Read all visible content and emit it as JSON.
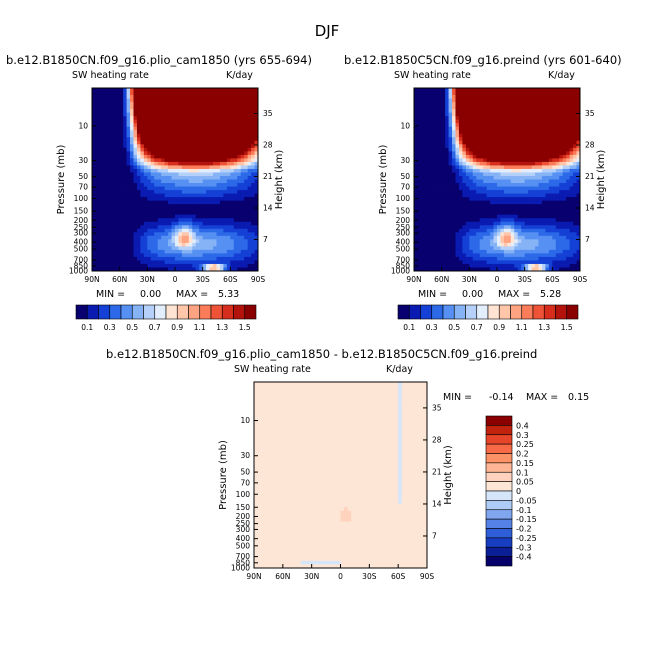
{
  "page_title": "DJF",
  "colors": {
    "frame": "#000000",
    "background": "#ffffff"
  },
  "chart_data": [
    {
      "type": "heatmap",
      "title": "b.e12.B1850CN.f09_g16.plio_cam1850 (yrs 655-694)",
      "subtitle_left": "SW heating rate",
      "subtitle_right": "K/day",
      "ylabel": "Pressure (mb)",
      "ylabel_right": "Height (km)",
      "x_ticks": [
        "90N",
        "60N",
        "30N",
        "0",
        "30S",
        "60S",
        "90S"
      ],
      "y_ticks": [
        "10",
        "30",
        "50",
        "70",
        "100",
        "150",
        "200",
        "250",
        "300",
        "400",
        "500",
        "700",
        "850",
        "1000"
      ],
      "y_ticks_right": [
        "35",
        "28",
        "21",
        "14",
        "7"
      ],
      "ylim": [
        1000,
        3
      ],
      "stats": {
        "min_label": "MIN =",
        "min_value": "0.00",
        "max_label": "MAX =",
        "max_value": "5.33"
      },
      "colorbar": {
        "labels": [
          "0.1",
          "0.3",
          "0.5",
          "0.7",
          "0.9",
          "1.1",
          "1.3",
          "1.5"
        ],
        "colors": [
          "#08006e",
          "#0a1bb1",
          "#1440d6",
          "#2c69e8",
          "#5690f2",
          "#86b2f6",
          "#b6d1f9",
          "#e3eefd",
          "#ffe3d3",
          "#ffc6aa",
          "#fda382",
          "#fb7c59",
          "#ee5337",
          "#d72d1c",
          "#b3130c",
          "#8a0000"
        ]
      },
      "mean_fields": {
        "min": 0.0,
        "max": 5.33
      }
    },
    {
      "type": "heatmap",
      "title": "b.e12.B1850C5CN.f09_g16.preind (yrs 601-640)",
      "subtitle_left": "SW heating rate",
      "subtitle_right": "K/day",
      "ylabel": "Pressure (mb)",
      "ylabel_right": "Height (km)",
      "x_ticks": [
        "90N",
        "60N",
        "30N",
        "0",
        "30S",
        "60S",
        "90S"
      ],
      "y_ticks": [
        "10",
        "30",
        "50",
        "70",
        "100",
        "150",
        "200",
        "250",
        "300",
        "400",
        "500",
        "700",
        "850",
        "1000"
      ],
      "y_ticks_right": [
        "35",
        "28",
        "21",
        "14",
        "7"
      ],
      "ylim": [
        1000,
        3
      ],
      "stats": {
        "min_label": "MIN =",
        "min_value": "0.00",
        "max_label": "MAX =",
        "max_value": "5.28"
      },
      "colorbar": {
        "labels": [
          "0.1",
          "0.3",
          "0.5",
          "0.7",
          "0.9",
          "1.1",
          "1.3",
          "1.5"
        ],
        "colors": [
          "#08006e",
          "#0a1bb1",
          "#1440d6",
          "#2c69e8",
          "#5690f2",
          "#86b2f6",
          "#b6d1f9",
          "#e3eefd",
          "#ffe3d3",
          "#ffc6aa",
          "#fda382",
          "#fb7c59",
          "#ee5337",
          "#d72d1c",
          "#b3130c",
          "#8a0000"
        ]
      },
      "mean_fields": {
        "min": 0.0,
        "max": 5.28
      }
    },
    {
      "type": "heatmap",
      "title": "b.e12.B1850CN.f09_g16.plio_cam1850 - b.e12.B1850C5CN.f09_g16.preind",
      "subtitle_left": "SW heating rate",
      "subtitle_right": "K/day",
      "ylabel": "Pressure (mb)",
      "ylabel_right": "Height (km)",
      "x_ticks": [
        "90N",
        "60N",
        "30N",
        "0",
        "30S",
        "60S",
        "90S"
      ],
      "y_ticks": [
        "10",
        "30",
        "50",
        "70",
        "100",
        "150",
        "200",
        "250",
        "300",
        "400",
        "500",
        "700",
        "850",
        "1000"
      ],
      "y_ticks_right": [
        "35",
        "28",
        "21",
        "14",
        "7"
      ],
      "ylim": [
        1000,
        3
      ],
      "stats": {
        "min_label": "MIN =",
        "min_value": "-0.14",
        "max_label": "MAX =",
        "max_value": "0.15"
      },
      "colorbar": {
        "labels": [
          "0.4",
          "0.3",
          "0.25",
          "0.2",
          "0.15",
          "0.1",
          "0.05",
          "0",
          "-0.05",
          "-0.1",
          "-0.15",
          "-0.2",
          "-0.25",
          "-0.3",
          "-0.4"
        ],
        "colors": [
          "#8a0000",
          "#c1230f",
          "#e6452a",
          "#f86a45",
          "#fd9267",
          "#feb595",
          "#ffd2bd",
          "#fee6d6",
          "#d5e6fb",
          "#aecbf6",
          "#7fa6ef",
          "#5582e6",
          "#2f5ed9",
          "#173dc0",
          "#0a1f96",
          "#06006a"
        ]
      },
      "mean_fields": {
        "min": -0.14,
        "max": 0.15
      }
    }
  ]
}
